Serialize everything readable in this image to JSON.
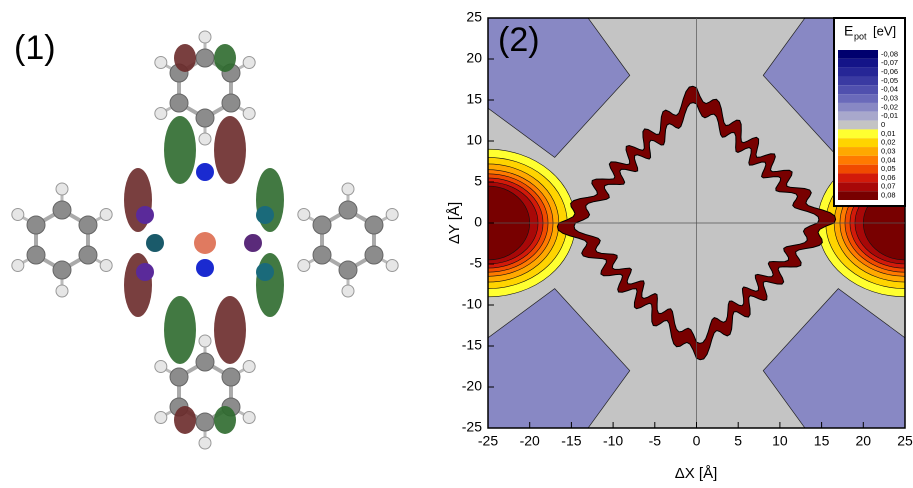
{
  "panel_1": {
    "label": "(1)"
  },
  "chart_data": {
    "type": "contour",
    "label": "(2)",
    "xlabel": "ΔX [Å]",
    "ylabel": "ΔY [Å]",
    "xlim": [
      -25,
      25
    ],
    "ylim": [
      -25,
      25
    ],
    "xticks": [
      -25,
      -20,
      -15,
      -10,
      -5,
      0,
      5,
      10,
      15,
      20,
      25
    ],
    "yticks": [
      -25,
      -20,
      -15,
      -10,
      -5,
      0,
      5,
      10,
      15,
      20,
      25
    ],
    "colorbar": {
      "title": "E",
      "title_sub": "pot",
      "title_unit": "[eV]",
      "levels": [
        {
          "value": -0.08,
          "label": "-0,08"
        },
        {
          "value": -0.07,
          "label": "-0,07"
        },
        {
          "value": -0.06,
          "label": "-0,06"
        },
        {
          "value": -0.05,
          "label": "-0,05"
        },
        {
          "value": -0.04,
          "label": "-0,04"
        },
        {
          "value": -0.03,
          "label": "-0,03"
        },
        {
          "value": -0.02,
          "label": "-0,02"
        },
        {
          "value": -0.01,
          "label": "-0,01"
        },
        0,
        {
          "value": 0.01,
          "label": "0,01"
        },
        {
          "value": 0.02,
          "label": "0,02"
        },
        {
          "value": 0.03,
          "label": "0,03"
        },
        {
          "value": 0.04,
          "label": "0,04"
        },
        {
          "value": 0.05,
          "label": "0,05"
        },
        {
          "value": 0.06,
          "label": "0,06"
        },
        {
          "value": 0.07,
          "label": "0,07"
        },
        {
          "value": 0.08,
          "label": "0,08"
        }
      ],
      "colors": [
        "#00006e",
        "#141488",
        "#262696",
        "#3a3aa2",
        "#5050ae",
        "#6a6aba",
        "#8888c4",
        "#a8a8cc",
        "#c4c4c4",
        "#ffff30",
        "#ffd400",
        "#ffa800",
        "#ff7a00",
        "#f04a00",
        "#d21a0a",
        "#a80808",
        "#780000"
      ]
    }
  }
}
